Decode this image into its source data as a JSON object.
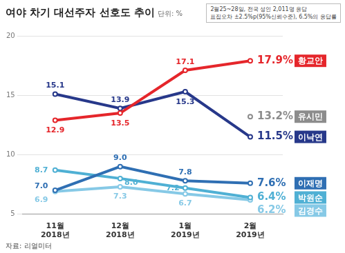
{
  "chart_data": {
    "type": "line",
    "title": "여야 차기 대선주자 선호도 추이",
    "subtitle": "단위: %",
    "annotations": [
      "2월25~28일, 전국 성인 2,011명 응답",
      "표집오차 ±2.5%p(95%신뢰수준), 6.5%의 응답률"
    ],
    "source": "자료: 리얼미터",
    "categories": [
      "11월\n2018년",
      "12월\n2018년",
      "1월\n2019년",
      "2월\n2019년"
    ],
    "series": [
      {
        "name": "황교안",
        "color": "#e5262b",
        "values": [
          12.9,
          13.5,
          17.1,
          17.9
        ],
        "value_labels": [
          "12.9",
          "13.5",
          "17.1",
          "17.9%"
        ]
      },
      {
        "name": "유시민",
        "color": "#8c8c8c",
        "values": [
          null,
          null,
          null,
          13.2
        ],
        "value_labels": [
          null,
          null,
          null,
          "13.2%"
        ]
      },
      {
        "name": "이낙연",
        "color": "#27388a",
        "values": [
          15.1,
          13.9,
          15.3,
          11.5
        ],
        "value_labels": [
          "15.1",
          "13.9",
          "15.3",
          "11.5%"
        ]
      },
      {
        "name": "이재명",
        "color": "#2f6fb3",
        "values": [
          7.0,
          9.0,
          7.8,
          7.6
        ],
        "value_labels": [
          "7.0",
          "9.0",
          "7.8",
          "7.6%"
        ]
      },
      {
        "name": "박원순",
        "color": "#4fb0d4",
        "values": [
          8.7,
          8.0,
          7.2,
          6.4
        ],
        "value_labels": [
          "8.7",
          "8.0",
          "7.2",
          "6.4%"
        ]
      },
      {
        "name": "김경수",
        "color": "#86c9e6",
        "values": [
          6.9,
          7.3,
          6.7,
          6.2
        ],
        "value_labels": [
          "6.9",
          "7.3",
          "6.7",
          "6.2%"
        ]
      }
    ],
    "ylim": [
      5,
      20
    ],
    "yticks": [
      5,
      10,
      15,
      20
    ],
    "grid": true,
    "data_labels": true,
    "marker": "circle"
  }
}
